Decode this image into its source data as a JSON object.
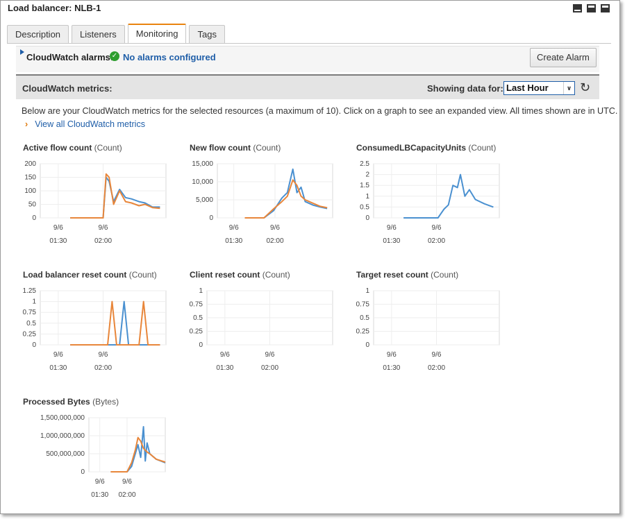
{
  "title": "Load balancer: NLB-1",
  "window_icons": [
    "minimize-icon",
    "split-icon",
    "maximize-icon"
  ],
  "tabs": [
    {
      "label": "Description",
      "active": false
    },
    {
      "label": "Listeners",
      "active": false
    },
    {
      "label": "Monitoring",
      "active": true
    },
    {
      "label": "Tags",
      "active": false
    }
  ],
  "alarms": {
    "label": "CloudWatch alarms:",
    "status": "No alarms configured",
    "button": "Create Alarm"
  },
  "metrics": {
    "label": "CloudWatch metrics:",
    "showing_label": "Showing data for:",
    "range": "Last Hour",
    "description": "Below are your CloudWatch metrics for the selected resources (a maximum of 10). Click on a graph to see an expanded view. All times shown are in UTC.",
    "view_all": "View all CloudWatch metrics"
  },
  "colors": {
    "series_blue": "#4a90d0",
    "series_orange": "#e8863a",
    "link": "#1f5ea8",
    "accent": "#e9830e"
  },
  "chart_data": [
    {
      "type": "line",
      "name": "Active flow count",
      "unit": "(Count)",
      "ylim": [
        0,
        200
      ],
      "yticks": [
        "0",
        "50",
        "100",
        "150",
        "200"
      ],
      "xticks": [
        {
          "date": "9/6",
          "time": "01:30"
        },
        {
          "date": "9/6",
          "time": "02:00"
        }
      ],
      "series": [
        {
          "color": "#4a90d0",
          "points": [
            [
              1.0,
              0
            ],
            [
              1.22,
              0
            ],
            [
              1.24,
              150
            ],
            [
              1.26,
              135
            ],
            [
              1.29,
              60
            ],
            [
              1.33,
              105
            ],
            [
              1.37,
              75
            ],
            [
              1.41,
              70
            ],
            [
              1.46,
              60
            ],
            [
              1.5,
              55
            ],
            [
              1.55,
              40
            ],
            [
              1.6,
              40
            ]
          ]
        },
        {
          "color": "#e8863a",
          "points": [
            [
              1.0,
              0
            ],
            [
              1.22,
              0
            ],
            [
              1.24,
              162
            ],
            [
              1.26,
              150
            ],
            [
              1.29,
              50
            ],
            [
              1.33,
              100
            ],
            [
              1.37,
              60
            ],
            [
              1.41,
              55
            ],
            [
              1.46,
              45
            ],
            [
              1.5,
              50
            ],
            [
              1.55,
              38
            ],
            [
              1.6,
              35
            ]
          ]
        }
      ]
    },
    {
      "type": "line",
      "name": "New flow count",
      "unit": "(Count)",
      "ylim": [
        0,
        15000
      ],
      "yticks": [
        "0",
        "5,000",
        "10,000",
        "15,000"
      ],
      "xticks": [
        {
          "date": "9/6",
          "time": "01:30"
        },
        {
          "date": "9/6",
          "time": "02:00"
        }
      ],
      "series": [
        {
          "color": "#4a90d0",
          "points": [
            [
              1.0,
              0
            ],
            [
              1.14,
              0
            ],
            [
              1.21,
              2000
            ],
            [
              1.27,
              5500
            ],
            [
              1.31,
              7000
            ],
            [
              1.35,
              13500
            ],
            [
              1.38,
              7000
            ],
            [
              1.41,
              8500
            ],
            [
              1.44,
              4500
            ],
            [
              1.5,
              3500
            ],
            [
              1.55,
              3000
            ],
            [
              1.6,
              2600
            ]
          ]
        },
        {
          "color": "#e8863a",
          "points": [
            [
              1.0,
              0
            ],
            [
              1.14,
              0
            ],
            [
              1.21,
              2500
            ],
            [
              1.27,
              4500
            ],
            [
              1.31,
              6000
            ],
            [
              1.35,
              10500
            ],
            [
              1.38,
              9000
            ],
            [
              1.41,
              6000
            ],
            [
              1.44,
              5000
            ],
            [
              1.5,
              4000
            ],
            [
              1.55,
              3200
            ],
            [
              1.6,
              2800
            ]
          ]
        }
      ]
    },
    {
      "type": "line",
      "name": "ConsumedLBCapacityUnits",
      "unit": "(Count)",
      "ylim": [
        0,
        2.5
      ],
      "yticks": [
        "0",
        "0.5",
        "1",
        "1.5",
        "2",
        "2.5"
      ],
      "xticks": [
        {
          "date": "9/6",
          "time": "01:30"
        },
        {
          "date": "9/6",
          "time": "02:00"
        }
      ],
      "series": [
        {
          "color": "#4a90d0",
          "points": [
            [
              1.0,
              0
            ],
            [
              1.23,
              0
            ],
            [
              1.27,
              0.4
            ],
            [
              1.3,
              0.6
            ],
            [
              1.33,
              1.5
            ],
            [
              1.36,
              1.4
            ],
            [
              1.38,
              2.0
            ],
            [
              1.41,
              1.0
            ],
            [
              1.44,
              1.3
            ],
            [
              1.48,
              0.85
            ],
            [
              1.54,
              0.65
            ],
            [
              1.6,
              0.5
            ]
          ]
        }
      ]
    },
    {
      "type": "line",
      "name": "Load balancer reset count",
      "unit": "(Count)",
      "ylim": [
        0,
        1.25
      ],
      "yticks": [
        "0",
        "0.25",
        "0.5",
        "0.75",
        "1",
        "1.25"
      ],
      "xticks": [
        {
          "date": "9/6",
          "time": "01:30"
        },
        {
          "date": "9/6",
          "time": "02:00"
        }
      ],
      "series": [
        {
          "color": "#4a90d0",
          "points": [
            [
              1.0,
              0
            ],
            [
              1.33,
              0
            ],
            [
              1.36,
              1
            ],
            [
              1.39,
              0
            ],
            [
              1.6,
              0
            ]
          ]
        },
        {
          "color": "#e8863a",
          "points": [
            [
              1.0,
              0
            ],
            [
              1.25,
              0
            ],
            [
              1.28,
              1
            ],
            [
              1.31,
              0
            ],
            [
              1.46,
              0
            ],
            [
              1.49,
              1
            ],
            [
              1.52,
              0
            ],
            [
              1.6,
              0
            ]
          ]
        }
      ]
    },
    {
      "type": "line",
      "name": "Client reset count",
      "unit": "(Count)",
      "ylim": [
        0,
        1
      ],
      "yticks": [
        "0",
        "0.25",
        "0.5",
        "0.75",
        "1"
      ],
      "xticks": [
        {
          "date": "9/6",
          "time": "01:30"
        },
        {
          "date": "9/6",
          "time": "02:00"
        }
      ],
      "series": []
    },
    {
      "type": "line",
      "name": "Target reset count",
      "unit": "(Count)",
      "ylim": [
        0,
        1
      ],
      "yticks": [
        "0",
        "0.25",
        "0.5",
        "0.75",
        "1"
      ],
      "xticks": [
        {
          "date": "9/6",
          "time": "01:30"
        },
        {
          "date": "9/6",
          "time": "02:00"
        }
      ],
      "series": []
    },
    {
      "type": "line",
      "name": "Processed Bytes",
      "unit": "(Bytes)",
      "ylim": [
        0,
        1500000000
      ],
      "yticks": [
        "0",
        "500,000,000",
        "1,000,000,000",
        "1,500,000,000"
      ],
      "xticks": [
        {
          "date": "9/6",
          "time": "01:30"
        },
        {
          "date": "9/6",
          "time": "02:00"
        }
      ],
      "series": [
        {
          "color": "#4a90d0",
          "points": [
            [
              1.0,
              0
            ],
            [
              1.18,
              0
            ],
            [
              1.23,
              150000000
            ],
            [
              1.27,
              500000000
            ],
            [
              1.3,
              750000000
            ],
            [
              1.33,
              400000000
            ],
            [
              1.36,
              1250000000
            ],
            [
              1.38,
              300000000
            ],
            [
              1.4,
              800000000
            ],
            [
              1.43,
              500000000
            ],
            [
              1.5,
              350000000
            ],
            [
              1.6,
              250000000
            ]
          ]
        },
        {
          "color": "#e8863a",
          "points": [
            [
              1.0,
              0
            ],
            [
              1.18,
              0
            ],
            [
              1.23,
              250000000
            ],
            [
              1.27,
              600000000
            ],
            [
              1.3,
              950000000
            ],
            [
              1.33,
              850000000
            ],
            [
              1.36,
              650000000
            ],
            [
              1.38,
              600000000
            ],
            [
              1.4,
              550000000
            ],
            [
              1.43,
              500000000
            ],
            [
              1.5,
              350000000
            ],
            [
              1.6,
              270000000
            ]
          ]
        }
      ]
    }
  ]
}
